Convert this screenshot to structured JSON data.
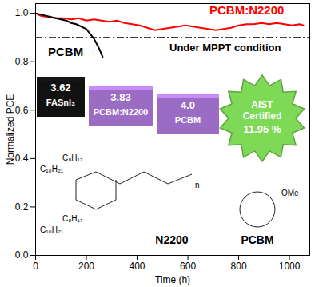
{
  "chart_data": {
    "type": "line",
    "xlabel": "Time (h)",
    "ylabel": "Normalized PCE",
    "xlim": [
      0,
      1080
    ],
    "xticks": [
      0,
      200,
      400,
      600,
      800,
      1000
    ],
    "ylim": [
      0,
      1.04
    ],
    "yticks": [
      {
        "value": 0,
        "label": "0.0"
      },
      0.2,
      0.4,
      0.6,
      0.8,
      {
        "value": 1,
        "label": "1.0"
      }
    ],
    "series": [
      {
        "name": "PCBM:N2200",
        "color": "#ff0000",
        "x": [
          0,
          20,
          50,
          80,
          110,
          140,
          170,
          200,
          230,
          260,
          290,
          320,
          350,
          380,
          410,
          440,
          470,
          500,
          530,
          560,
          590,
          620,
          650,
          680,
          710,
          740,
          770,
          800,
          830,
          860,
          890,
          920,
          950,
          980,
          1010,
          1040,
          1055
        ],
        "values": [
          1.0,
          0.99,
          0.985,
          0.98,
          0.98,
          0.975,
          0.98,
          0.97,
          0.975,
          0.97,
          0.965,
          0.97,
          0.96,
          0.955,
          0.95,
          0.94,
          0.93,
          0.935,
          0.94,
          0.945,
          0.95,
          0.945,
          0.94,
          0.935,
          0.93,
          0.935,
          0.94,
          0.95,
          0.955,
          0.955,
          0.96,
          0.955,
          0.96,
          0.955,
          0.95,
          0.955,
          0.95
        ]
      },
      {
        "name": "PCBM",
        "color": "#000000",
        "x": [
          0,
          20,
          40,
          60,
          80,
          100,
          120,
          140,
          160,
          180,
          200,
          215,
          230,
          240,
          250,
          258,
          264
        ],
        "values": [
          1.0,
          0.995,
          0.99,
          0.985,
          0.98,
          0.975,
          0.97,
          0.96,
          0.955,
          0.945,
          0.935,
          0.915,
          0.895,
          0.875,
          0.855,
          0.835,
          0.82
        ]
      }
    ],
    "reference_lines": [
      {
        "y": 0.9,
        "line_style": "dashdot",
        "color": "#000000"
      }
    ],
    "annotations": [
      "Under MPPT condition"
    ],
    "energy_levels": [
      {
        "material": "FASnI₃",
        "value": 3.62,
        "color": "#111111"
      },
      {
        "material": "PCBM:N2200",
        "value": 3.83,
        "color": "#9b6cc4"
      },
      {
        "material": "PCBM",
        "value": 4.0,
        "label": "4.0",
        "color": "#9b6cc4"
      }
    ],
    "certificate": {
      "text": "AIST Certified",
      "value": 11.95,
      "label": "11.95 %",
      "color": "#7ed957"
    },
    "structure_labels": [
      "N2200",
      "PCBM"
    ],
    "structure_texts": [
      "C₈H₁₇",
      "C₁₀H₂₁",
      "C₈H₁₇",
      "C₁₀H₂₁",
      "n",
      "OMe"
    ]
  }
}
